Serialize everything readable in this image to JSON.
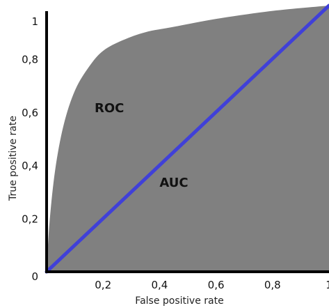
{
  "chart_data": {
    "type": "area",
    "title": "",
    "xlabel": "False positive rate",
    "ylabel": "True positive rate",
    "xlim": [
      0,
      1
    ],
    "ylim": [
      0,
      1
    ],
    "x_ticks": [
      "0,2",
      "0,4",
      "0,6",
      "0,8",
      "1"
    ],
    "x_tick_values": [
      0.2,
      0.4,
      0.6,
      0.8,
      1
    ],
    "y_ticks": [
      "0",
      "0,2",
      "0,4",
      "0,6",
      "0,8",
      "1"
    ],
    "y_tick_values": [
      0,
      0.2,
      0.4,
      0.6,
      0.8,
      1
    ],
    "grid": false,
    "series": [
      {
        "name": "ROC",
        "x": [
          0,
          0.01,
          0.03,
          0.06,
          0.1,
          0.15,
          0.2,
          0.27,
          0.35,
          0.45,
          0.6,
          0.8,
          1.0
        ],
        "y": [
          0,
          0.18,
          0.38,
          0.55,
          0.68,
          0.77,
          0.83,
          0.87,
          0.9,
          0.92,
          0.95,
          0.98,
          1.0
        ]
      },
      {
        "name": "",
        "x": [
          0,
          1
        ],
        "y": [
          0,
          1
        ]
      }
    ],
    "annotations": [
      {
        "text": "ROC",
        "x": 0.17,
        "y": 0.6
      },
      {
        "text": "AUC",
        "x": 0.4,
        "y": 0.32
      }
    ],
    "colors": {
      "area": "#808080",
      "diagonal": "#4040d8",
      "axis": "#000000"
    }
  }
}
